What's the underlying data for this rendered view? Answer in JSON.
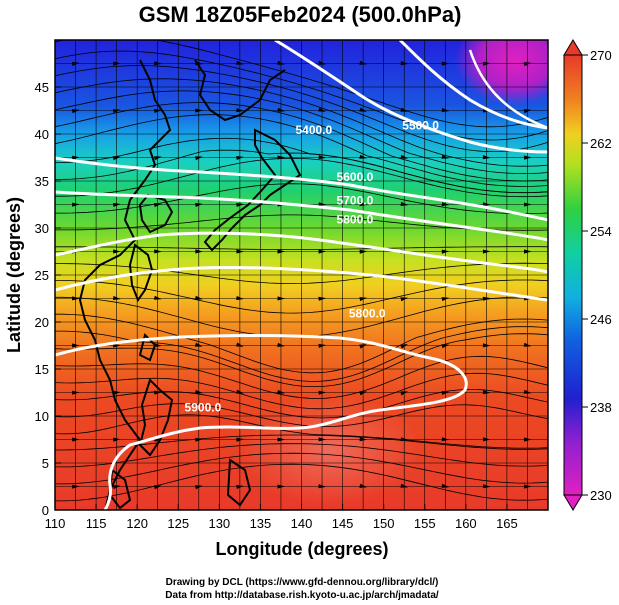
{
  "title": "GSM 18Z05Feb2024 (500.0hPa)",
  "xlabel": "Longitude (degrees)",
  "ylabel": "Latitude  (degrees)",
  "xticks": [
    "110",
    "115",
    "120",
    "125",
    "130",
    "135",
    "140",
    "145",
    "150",
    "155",
    "160",
    "165"
  ],
  "yticks": [
    "0",
    "5",
    "10",
    "15",
    "20",
    "25",
    "30",
    "35",
    "40",
    "45"
  ],
  "colorbar": {
    "ticks": [
      "230",
      "238",
      "246",
      "254",
      "262",
      "270"
    ]
  },
  "contour_labels": [
    {
      "text": "5400.0",
      "lon": 141.5,
      "lat": 40.0
    },
    {
      "text": "5500.0",
      "lon": 154.5,
      "lat": 40.5
    },
    {
      "text": "5600.0",
      "lon": 146.5,
      "lat": 35.0
    },
    {
      "text": "5700.0",
      "lon": 146.5,
      "lat": 32.5
    },
    {
      "text": "5800.0",
      "lon": 146.5,
      "lat": 30.5
    },
    {
      "text": "5800.0",
      "lon": 148.0,
      "lat": 20.5
    },
    {
      "text": "5900.0",
      "lon": 128.0,
      "lat": 10.5
    }
  ],
  "credits": [
    "Drawing by DCL (https://www.gfd-dennou.org/library/dcl/)",
    "Data from http://database.rish.kyoto-u.ac.jp/arch/jmadata/"
  ],
  "chart_data": {
    "type": "heatmap",
    "title": "GSM 18Z05Feb2024 (500.0hPa)",
    "xlabel": "Longitude (degrees)",
    "ylabel": "Latitude  (degrees)",
    "xlim": [
      110,
      170
    ],
    "ylim": [
      0,
      50
    ],
    "color_range": [
      230,
      270
    ],
    "colorbar_ticks": [
      230,
      238,
      246,
      254,
      262,
      270
    ],
    "grid": true,
    "overlays": [
      "geopotential height contours (white)",
      "wind streamlines (black)",
      "coastlines"
    ],
    "contour_values": [
      5400.0,
      5500.0,
      5600.0,
      5700.0,
      5800.0,
      5900.0
    ]
  }
}
